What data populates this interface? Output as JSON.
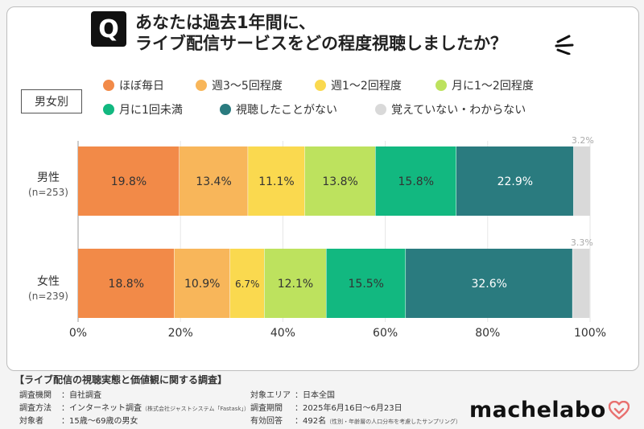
{
  "title": {
    "q": "Q",
    "line1": "あなたは過去1年間に、",
    "line2": "ライブ配信サービスをどの程度視聴しましたか？"
  },
  "segment_label": "男女別",
  "chart_data": {
    "type": "bar",
    "orientation": "horizontal",
    "stacked": true,
    "xlim": [
      0,
      100
    ],
    "x_ticks": [
      "0%",
      "20%",
      "40%",
      "60%",
      "80%",
      "100%"
    ],
    "grid": true,
    "legend_position": "top",
    "categories": [
      {
        "label": "男性",
        "n": "(n=253)"
      },
      {
        "label": "女性",
        "n": "(n=239)"
      }
    ],
    "series": [
      {
        "name": "ほぼ毎日",
        "color": "#f28a48",
        "values": [
          19.8,
          18.8
        ],
        "labels": [
          "19.8%",
          "18.8%"
        ]
      },
      {
        "name": "週3～5回程度",
        "color": "#f8b65a",
        "values": [
          13.4,
          10.9
        ],
        "labels": [
          "13.4%",
          "10.9%"
        ]
      },
      {
        "name": "週1～2回程度",
        "color": "#fad94f",
        "values": [
          11.1,
          6.7
        ],
        "labels": [
          "11.1%",
          "6.7%"
        ]
      },
      {
        "name": "月に1～2回程度",
        "color": "#bde25e",
        "values": [
          13.8,
          12.1
        ],
        "labels": [
          "13.8%",
          "12.1%"
        ]
      },
      {
        "name": "月に1回未満",
        "color": "#12b880",
        "values": [
          15.8,
          15.5
        ],
        "labels": [
          "15.8%",
          "15.5%"
        ]
      },
      {
        "name": "視聴したことがない",
        "color": "#2a7b7f",
        "values": [
          22.9,
          32.6
        ],
        "labels": [
          "22.9%",
          "32.6%"
        ]
      },
      {
        "name": "覚えていない・わからない",
        "color": "#d9d9d9",
        "values": [
          3.2,
          3.3
        ],
        "labels": [
          "3.2%",
          "3.3%"
        ]
      }
    ]
  },
  "footer": {
    "title": "【ライブ配信の視聴実態と価値観に関する調査】",
    "rows": [
      {
        "key": "調査機関",
        "value": "：自社調査"
      },
      {
        "key": "調査方法",
        "value": "：インターネット調査",
        "note": "（株式会社ジャストシステム「Fastask」）"
      },
      {
        "key": "対象者",
        "value": "：15歳～69歳の男女"
      },
      {
        "key": "対象エリア",
        "value": "：日本全国"
      },
      {
        "key": "調査期間",
        "value": "：2025年6月16日～6月23日"
      },
      {
        "key": "有効回答",
        "value": "：492名",
        "note": "（性別・年齢層の人口分布を考慮したサンプリング）"
      }
    ],
    "logo": "machelabo"
  }
}
